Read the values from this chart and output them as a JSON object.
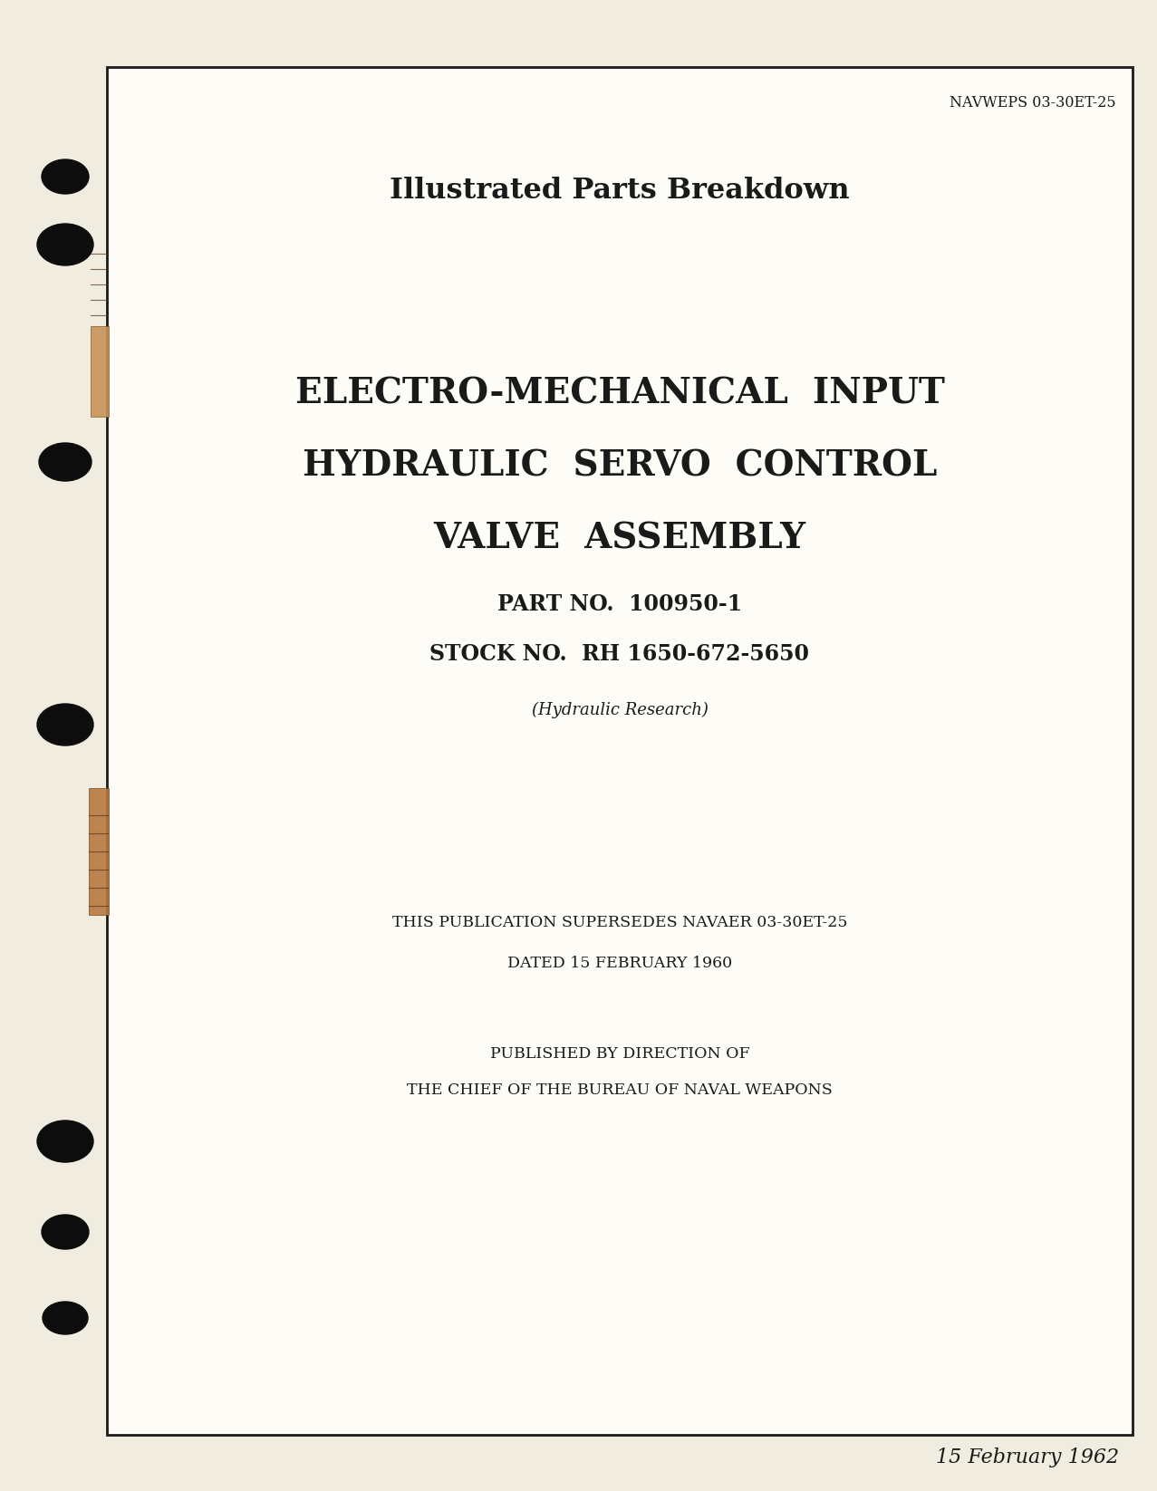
{
  "background_color": "#f0ede0",
  "page_background": "#fdfcf6",
  "border_color": "#1a1a1a",
  "text_color": "#1a1a1a",
  "header_ref": "NAVWEPS 03-30ET-25",
  "title_line1": "Illustrated Parts Breakdown",
  "main_title_line1": "ELECTRO-MECHANICAL  INPUT",
  "main_title_line2": "HYDRAULIC  SERVO  CONTROL",
  "main_title_line3": "VALVE  ASSEMBLY",
  "part_no_label": "PART NO.  100950-1",
  "stock_no_label": "STOCK NO.  RH 1650-672-5650",
  "hydraulic_research": "(Hydraulic Research)",
  "supersedes_line1": "THIS PUBLICATION SUPERSEDES NAVAER 03-30ET-25",
  "supersedes_line2": "DATED 15 FEBRUARY 1960",
  "published_line1": "PUBLISHED BY DIRECTION OF",
  "published_line2": "THE CHIEF OF THE BUREAU OF NAVAL WEAPONS",
  "date_footer": "15 February 1962",
  "hole_color": "#0d0d0d",
  "tab_color": "#c8935a",
  "tab_color2": "#b87840"
}
